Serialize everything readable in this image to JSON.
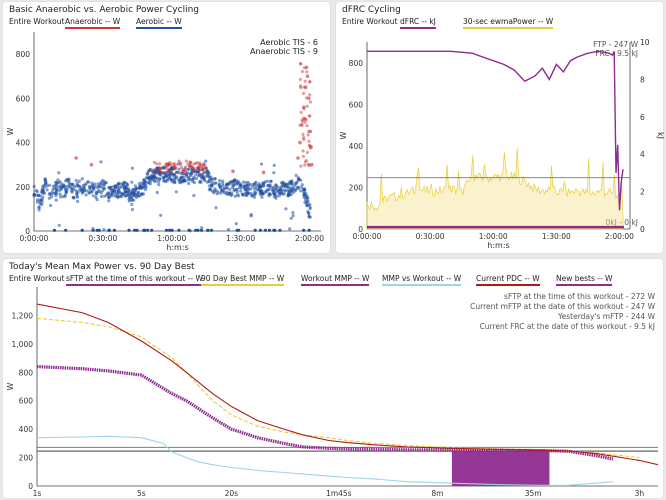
{
  "panels": {
    "p1": {
      "title": "Basic Anaerobic vs. Aerobic Power Cycling",
      "scope": "Entire Workout",
      "legend": [
        {
          "label": "Anaerobic  -- W",
          "color": "#d0393b"
        },
        {
          "label": "Aerobic  -- W",
          "color": "#1f4fa0"
        }
      ],
      "annotations": [
        "Aerobic TIS - 6",
        "Anaerobic TIS - 9"
      ]
    },
    "p2": {
      "title": "dFRC Cycling",
      "scope": "Entire Workout",
      "legend": [
        {
          "label": "dFRC  -- kJ",
          "color": "#8e2c8f"
        },
        {
          "label": "30-sec ewmaPower  -- W",
          "color": "#e6cf3a"
        }
      ],
      "annotations": [
        "FTP - 247 W",
        "FRC - 9.5 kJ",
        "0kJ - 0 kJ"
      ]
    },
    "p3": {
      "title": "Today's Mean Max Power vs. 90 Day Best",
      "scope": "Entire Workout",
      "legend": [
        {
          "label": "sFTP at the time of this workout  -- W",
          "color": "#8e2c8f"
        },
        {
          "label": "90 Day Best MMP  -- W",
          "color": "#e6cf3a"
        },
        {
          "label": "Workout MMP  -- W",
          "color": "#8e2c8f"
        },
        {
          "label": "MMP vs Workout  -- W",
          "color": "#9fd4e8"
        },
        {
          "label": "Current PDC  -- W",
          "color": "#b01a1a"
        },
        {
          "label": "New bests  -- W",
          "color": "#8e2c8f"
        }
      ],
      "annotations": [
        "sFTP at the time of this workout - 272 W",
        "Current mFTP at the date of this workout - 247 W",
        "Yesterday's mFTP - 244 W",
        "Current FRC at the date of this workout - 9.5 kJ"
      ]
    }
  },
  "chart_data": [
    {
      "type": "scatter",
      "title": "Basic Anaerobic vs. Aerobic Power Cycling",
      "xlabel": "h:m:s",
      "ylabel": "W",
      "xlim": [
        0,
        7500
      ],
      "ylim": [
        0,
        900
      ],
      "xticks": [
        [
          0,
          "0:00:00"
        ],
        [
          1800,
          "0:30:00"
        ],
        [
          3600,
          "1:00:00"
        ],
        [
          5400,
          "1:30:00"
        ],
        [
          7200,
          "2:00:00"
        ]
      ],
      "yticks": [
        0,
        200,
        400,
        600,
        800
      ],
      "series": [
        {
          "name": "Aerobic",
          "color": "#1f4fa0",
          "points": [
            [
              0,
              190
            ],
            [
              150,
              120
            ],
            [
              300,
              210
            ],
            [
              450,
              160
            ],
            [
              600,
              200
            ],
            [
              750,
              180
            ],
            [
              900,
              205
            ],
            [
              1050,
              170
            ],
            [
              1200,
              195
            ],
            [
              1350,
              185
            ],
            [
              1500,
              200
            ],
            [
              1650,
              175
            ],
            [
              1800,
              195
            ],
            [
              1950,
              185
            ],
            [
              2100,
              190
            ],
            [
              2250,
              180
            ],
            [
              2400,
              195
            ],
            [
              2550,
              150
            ],
            [
              2700,
              185
            ],
            [
              2850,
              190
            ],
            [
              3000,
              245
            ],
            [
              3150,
              255
            ],
            [
              3300,
              250
            ],
            [
              3450,
              258
            ],
            [
              3600,
              252
            ],
            [
              3750,
              250
            ],
            [
              3900,
              256
            ],
            [
              4050,
              249
            ],
            [
              4200,
              253
            ],
            [
              4350,
              250
            ],
            [
              4500,
              255
            ],
            [
              4650,
              205
            ],
            [
              4800,
              200
            ],
            [
              4950,
              195
            ],
            [
              5100,
              190
            ],
            [
              5250,
              200
            ],
            [
              5400,
              185
            ],
            [
              5550,
              195
            ],
            [
              5700,
              180
            ],
            [
              5850,
              190
            ],
            [
              6000,
              185
            ],
            [
              6150,
              195
            ],
            [
              6300,
              180
            ],
            [
              6450,
              190
            ],
            [
              6600,
              185
            ],
            [
              6750,
              200
            ],
            [
              6900,
              230
            ],
            [
              7050,
              170
            ],
            [
              7150,
              120
            ],
            [
              7250,
              60
            ]
          ]
        },
        {
          "name": "Anaerobic",
          "color": "#d0393b",
          "points": [
            [
              1100,
              330
            ],
            [
              1500,
              300
            ],
            [
              3100,
              270
            ],
            [
              3300,
              280
            ],
            [
              3500,
              300
            ],
            [
              3700,
              285
            ],
            [
              3900,
              270
            ],
            [
              4100,
              290
            ],
            [
              4300,
              275
            ],
            [
              4500,
              285
            ],
            [
              5200,
              270
            ],
            [
              6000,
              265
            ],
            [
              6900,
              330
            ],
            [
              6950,
              400
            ],
            [
              7000,
              480
            ],
            [
              7050,
              560
            ],
            [
              7100,
              650
            ],
            [
              7120,
              740
            ],
            [
              7150,
              700
            ],
            [
              7180,
              600
            ],
            [
              7200,
              520
            ],
            [
              7220,
              450
            ],
            [
              7240,
              380
            ],
            [
              7260,
              300
            ]
          ]
        }
      ]
    },
    {
      "type": "line",
      "title": "dFRC Cycling",
      "xlabel": "h:m:s",
      "ylabel": "W",
      "y2label": "kJ",
      "xlim": [
        0,
        7500
      ],
      "ylim": [
        0,
        900
      ],
      "y2lim": [
        0,
        10
      ],
      "xticks": [
        [
          0,
          "0:00:00"
        ],
        [
          1800,
          "0:30:00"
        ],
        [
          3600,
          "1:00:00"
        ],
        [
          5400,
          "1:30:00"
        ],
        [
          7200,
          "2:00:00"
        ]
      ],
      "yticks": [
        0,
        200,
        400,
        600,
        800
      ],
      "y2ticks": [
        0,
        2,
        4,
        6,
        8,
        10
      ],
      "ftp": 247,
      "series": [
        {
          "name": "dFRC",
          "axis": "kJ",
          "x": [
            0,
            600,
            1200,
            1800,
            2400,
            3000,
            3300,
            3600,
            3900,
            4200,
            4500,
            4800,
            5000,
            5200,
            5400,
            5600,
            5800,
            6000,
            6300,
            6600,
            6900,
            7000,
            7050,
            7100,
            7150,
            7200,
            7250,
            7300
          ],
          "values": [
            9.5,
            9.5,
            9.5,
            9.5,
            9.5,
            9.4,
            9.2,
            9.0,
            8.8,
            8.5,
            7.9,
            8.2,
            8.6,
            8.0,
            8.8,
            8.4,
            9.0,
            9.2,
            9.4,
            9.5,
            9.4,
            9.3,
            9.5,
            3.0,
            4.5,
            1.0,
            2.5,
            3.2
          ]
        },
        {
          "name": "30-sec ewmaPower",
          "axis": "W",
          "x": [
            0,
            300,
            600,
            900,
            1200,
            1500,
            1800,
            2100,
            2400,
            2700,
            3000,
            3300,
            3600,
            3900,
            4200,
            4500,
            4800,
            5100,
            5400,
            5700,
            6000,
            6300,
            6600,
            6900,
            7200,
            7300
          ],
          "values": [
            120,
            110,
            150,
            160,
            175,
            190,
            180,
            185,
            195,
            175,
            250,
            245,
            250,
            255,
            248,
            230,
            190,
            185,
            180,
            175,
            185,
            170,
            180,
            175,
            150,
            40
          ]
        }
      ]
    },
    {
      "type": "line",
      "title": "Today's Mean Max Power vs. 90 Day Best",
      "xlabel": "",
      "ylabel": "W",
      "xscale": "log",
      "xlim": [
        1,
        14400
      ],
      "ylim": [
        0,
        1400
      ],
      "xticks": [
        [
          1,
          "1s"
        ],
        [
          5,
          "5s"
        ],
        [
          20,
          "20s"
        ],
        [
          105,
          "1m45s"
        ],
        [
          480,
          "8m"
        ],
        [
          2100,
          "35m"
        ],
        [
          10800,
          "3h"
        ]
      ],
      "yticks": [
        0,
        200,
        400,
        600,
        800,
        1000,
        1200
      ],
      "reference_lines": [
        272,
        247,
        244
      ],
      "series": [
        {
          "name": "90 Day Best MMP",
          "x": [
            1,
            2,
            3,
            5,
            8,
            10,
            15,
            20,
            30,
            45,
            60,
            90,
            120,
            180,
            300,
            600,
            1200,
            2400,
            3600,
            5400,
            7200,
            10800
          ],
          "values": [
            1180,
            1150,
            1120,
            1050,
            900,
            800,
            600,
            500,
            420,
            380,
            360,
            340,
            320,
            300,
            285,
            270,
            262,
            255,
            248,
            235,
            220,
            200
          ]
        },
        {
          "name": "Workout MMP",
          "x": [
            1,
            2,
            3,
            5,
            8,
            10,
            15,
            20,
            30,
            45,
            60,
            90,
            120,
            180,
            300,
            600,
            1200,
            2400,
            3600,
            5400,
            7200
          ],
          "values": [
            840,
            825,
            810,
            780,
            650,
            600,
            480,
            400,
            340,
            300,
            275,
            265,
            262,
            258,
            255,
            253,
            251,
            249,
            245,
            215,
            190
          ]
        },
        {
          "name": "Current PDC",
          "x": [
            1,
            2,
            3,
            5,
            8,
            10,
            15,
            20,
            30,
            45,
            60,
            90,
            120,
            180,
            300,
            600,
            1200,
            2400,
            3600,
            5400,
            7200,
            10800,
            14400
          ],
          "values": [
            1280,
            1220,
            1150,
            1020,
            880,
            800,
            650,
            560,
            460,
            400,
            360,
            320,
            305,
            290,
            275,
            265,
            258,
            252,
            246,
            230,
            210,
            180,
            150
          ]
        },
        {
          "name": "MMP vs Workout",
          "x": [
            1,
            2,
            3,
            5,
            7,
            8,
            10,
            12,
            15,
            20,
            30,
            45,
            60,
            90,
            120,
            180,
            300,
            600,
            1200,
            2400,
            3600,
            5400,
            7200
          ],
          "values": [
            340,
            345,
            350,
            340,
            300,
            240,
            200,
            170,
            150,
            130,
            110,
            95,
            85,
            70,
            60,
            50,
            30,
            20,
            10,
            5,
            5,
            20,
            30
          ]
        },
        {
          "name": "New bests",
          "x": [
            600,
            2700
          ],
          "values": [
            250,
            250
          ]
        }
      ]
    }
  ]
}
